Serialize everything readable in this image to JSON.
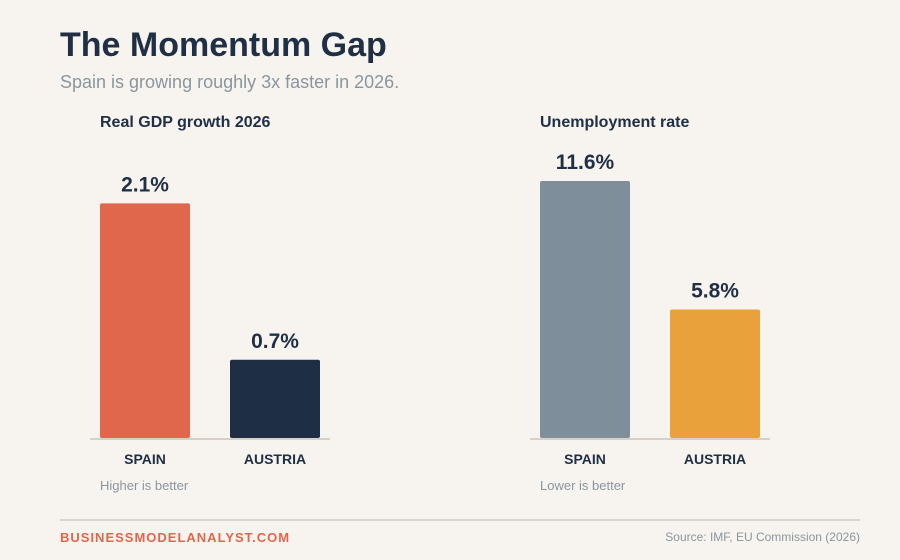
{
  "header": {
    "title": "The Momentum Gap",
    "subtitle": "Spain is growing roughly 3x faster in 2026."
  },
  "chart_data": [
    {
      "type": "bar",
      "title": "Real GDP growth 2026",
      "categories": [
        "SPAIN",
        "AUSTRIA"
      ],
      "values": [
        2.1,
        0.7
      ],
      "value_labels": [
        "2.1%",
        "0.7%"
      ],
      "colors": [
        "#e0674c",
        "#1e2e45"
      ],
      "note": "Higher is better",
      "ylim": [
        0,
        2.3
      ]
    },
    {
      "type": "bar",
      "title": "Unemployment rate",
      "categories": [
        "SPAIN",
        "AUSTRIA"
      ],
      "values": [
        11.6,
        5.8
      ],
      "value_labels": [
        "11.6%",
        "5.8%"
      ],
      "colors": [
        "#7e8e9a",
        "#e9a23b"
      ],
      "note": "Lower is better",
      "ylim": [
        0,
        11.6
      ]
    }
  ],
  "footer": {
    "brand": "BUSINESSMODELANALYST.COM",
    "source": "Source: IMF, EU Commission (2026)"
  }
}
